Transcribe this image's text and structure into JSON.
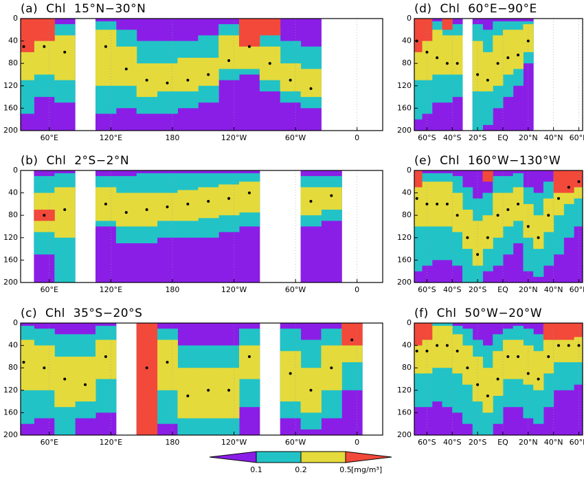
{
  "chart_data": [
    {
      "type": "contour",
      "title": "(a) Chl 15°N−30°N",
      "x": [
        35,
        55,
        75,
        95,
        115,
        135,
        155,
        175,
        195,
        215,
        235,
        255,
        275,
        295,
        315,
        335,
        355,
        375
      ],
      "values": [
        50,
        50,
        60,
        null,
        50,
        90,
        110,
        115,
        110,
        100,
        75,
        50,
        80,
        110,
        125,
        null,
        null,
        null
      ],
      "series": [
        {
          "top": [
            5,
            5,
            10,
            null,
            5,
            20,
            40,
            40,
            40,
            30,
            10,
            5,
            20,
            40,
            50,
            null,
            null,
            null
          ],
          "bottom": [
            170,
            140,
            150,
            null,
            170,
            160,
            170,
            170,
            160,
            150,
            110,
            100,
            130,
            150,
            160,
            null,
            null,
            null
          ]
        },
        {
          "top": [
            20,
            20,
            30,
            null,
            20,
            50,
            80,
            80,
            70,
            70,
            30,
            20,
            50,
            80,
            90,
            null,
            null,
            null
          ],
          "bottom": [
            110,
            100,
            110,
            null,
            120,
            120,
            140,
            130,
            130,
            120,
            90,
            90,
            110,
            130,
            140,
            null,
            null,
            null
          ]
        },
        {
          "top": [
            0,
            0,
            null,
            null,
            null,
            null,
            null,
            null,
            null,
            null,
            null,
            0,
            0,
            null,
            null,
            null,
            null,
            null
          ],
          "bottom": [
            60,
            40,
            null,
            null,
            null,
            null,
            null,
            null,
            null,
            null,
            null,
            50,
            30,
            null,
            null,
            null,
            null,
            null
          ]
        }
      ],
      "xlim": [
        32,
        385
      ],
      "xticks": [
        {
          "value": 60,
          "label": "60°E"
        },
        {
          "value": 120,
          "label": "120°E"
        },
        180,
        {
          "value": 240,
          "label": "120°W"
        },
        {
          "value": 300,
          "label": "60°W"
        },
        {
          "value": 360,
          "label": "0"
        }
      ],
      "ylim": [
        200,
        0
      ],
      "yticks": [
        0,
        40,
        80,
        120,
        160,
        200
      ],
      "grid": true
    },
    {
      "type": "contour",
      "title": "(b) Chl 2°S−2°N",
      "x": [
        35,
        55,
        75,
        95,
        115,
        135,
        155,
        175,
        195,
        215,
        235,
        255,
        275,
        295,
        315,
        335,
        355,
        375
      ],
      "values": [
        null,
        80,
        70,
        null,
        60,
        75,
        70,
        65,
        60,
        55,
        50,
        40,
        null,
        null,
        55,
        45,
        null,
        null
      ],
      "series": [
        {
          "top": [
            null,
            10,
            5,
            null,
            10,
            10,
            5,
            5,
            5,
            5,
            5,
            5,
            null,
            null,
            10,
            10,
            null,
            null
          ],
          "bottom": [
            null,
            150,
            200,
            null,
            100,
            130,
            130,
            120,
            120,
            120,
            110,
            100,
            null,
            null,
            100,
            90,
            null,
            null
          ]
        },
        {
          "top": [
            null,
            40,
            30,
            null,
            30,
            40,
            40,
            40,
            35,
            30,
            25,
            20,
            null,
            null,
            30,
            30,
            null,
            null
          ],
          "bottom": [
            null,
            110,
            120,
            null,
            90,
            100,
            100,
            90,
            90,
            85,
            80,
            75,
            null,
            null,
            80,
            70,
            null,
            null
          ]
        },
        {
          "top": [
            null,
            70,
            null,
            null,
            null,
            null,
            null,
            null,
            null,
            null,
            null,
            null,
            null,
            null,
            null,
            null,
            null,
            null
          ],
          "bottom": [
            null,
            90,
            null,
            null,
            null,
            null,
            null,
            null,
            null,
            null,
            null,
            null,
            null,
            null,
            null,
            null,
            null,
            null
          ]
        }
      ],
      "xlim": [
        32,
        385
      ],
      "xticks": [
        {
          "value": 60,
          "label": "60°E"
        },
        {
          "value": 120,
          "label": "120°E"
        },
        180,
        {
          "value": 240,
          "label": "120°W"
        },
        {
          "value": 300,
          "label": "60°W"
        },
        {
          "value": 360,
          "label": "0"
        }
      ],
      "ylim": [
        200,
        0
      ],
      "yticks": [
        0,
        40,
        80,
        120,
        160,
        200
      ],
      "grid": true
    },
    {
      "type": "contour",
      "title": "(c) Chl 35°S−20°S",
      "x": [
        35,
        55,
        75,
        95,
        115,
        135,
        155,
        175,
        195,
        215,
        235,
        255,
        275,
        295,
        315,
        335,
        355,
        375
      ],
      "values": [
        70,
        80,
        100,
        110,
        60,
        null,
        80,
        70,
        130,
        120,
        120,
        60,
        null,
        90,
        120,
        80,
        30,
        null
      ],
      "series": [
        {
          "top": [
            5,
            10,
            20,
            20,
            5,
            null,
            10,
            10,
            40,
            40,
            40,
            10,
            null,
            10,
            30,
            10,
            0,
            null
          ],
          "bottom": [
            180,
            170,
            200,
            170,
            160,
            null,
            200,
            180,
            200,
            200,
            200,
            150,
            null,
            170,
            190,
            170,
            120,
            null
          ]
        },
        {
          "top": [
            30,
            40,
            60,
            60,
            30,
            null,
            30,
            30,
            80,
            80,
            80,
            40,
            null,
            50,
            80,
            40,
            10,
            null
          ],
          "bottom": [
            120,
            120,
            150,
            140,
            100,
            null,
            140,
            120,
            170,
            170,
            170,
            100,
            null,
            140,
            160,
            120,
            70,
            null
          ]
        },
        {
          "top": [
            null,
            null,
            null,
            null,
            null,
            null,
            0,
            null,
            null,
            null,
            null,
            null,
            null,
            null,
            null,
            null,
            0,
            null
          ],
          "bottom": [
            null,
            null,
            null,
            null,
            null,
            null,
            200,
            null,
            null,
            null,
            null,
            null,
            null,
            null,
            null,
            null,
            40,
            null
          ]
        }
      ],
      "xlim": [
        32,
        385
      ],
      "xticks": [
        {
          "value": 60,
          "label": "60°E"
        },
        {
          "value": 120,
          "label": "120°E"
        },
        180,
        {
          "value": 240,
          "label": "120°W"
        },
        {
          "value": 300,
          "label": "60°W"
        },
        {
          "value": 360,
          "label": "0"
        }
      ],
      "ylim": [
        200,
        0
      ],
      "yticks": [
        0,
        40,
        80,
        120,
        160,
        200
      ],
      "grid": true
    },
    {
      "type": "contour",
      "title": "(d) Chl 60°E−90°E",
      "x": [
        -68,
        -60,
        -52,
        -44,
        -36,
        -28,
        -20,
        -12,
        -4,
        4,
        12,
        20,
        28,
        36,
        44,
        52,
        60
      ],
      "values": [
        40,
        60,
        70,
        80,
        80,
        null,
        100,
        110,
        80,
        70,
        65,
        40,
        null,
        null,
        null,
        null,
        null
      ],
      "series": [
        {
          "top": [
            0,
            5,
            5,
            10,
            10,
            null,
            10,
            20,
            5,
            5,
            5,
            5,
            null,
            null,
            null,
            null,
            null
          ],
          "bottom": [
            180,
            170,
            150,
            150,
            140,
            null,
            200,
            190,
            160,
            140,
            120,
            80,
            null,
            null,
            null,
            null,
            null
          ]
        },
        {
          "top": [
            5,
            20,
            20,
            30,
            30,
            null,
            40,
            60,
            30,
            20,
            20,
            10,
            null,
            null,
            null,
            null,
            null
          ],
          "bottom": [
            110,
            110,
            100,
            100,
            100,
            null,
            130,
            130,
            120,
            100,
            90,
            60,
            null,
            null,
            null,
            null,
            null
          ]
        },
        {
          "top": [
            0,
            0,
            null,
            0,
            null,
            null,
            null,
            null,
            null,
            null,
            null,
            null,
            null,
            null,
            null,
            null,
            null
          ],
          "bottom": [
            60,
            40,
            null,
            20,
            null,
            null,
            null,
            null,
            null,
            null,
            null,
            null,
            null,
            null,
            null,
            null,
            null
          ]
        }
      ],
      "xlim": [
        -70,
        63
      ],
      "xticks": [
        {
          "value": -60,
          "label": "60°S"
        },
        {
          "value": -40,
          "label": "40°S"
        },
        {
          "value": -20,
          "label": "20°S"
        },
        {
          "value": 0,
          "label": "EQ"
        },
        {
          "value": 20,
          "label": "20°N"
        },
        {
          "value": 40,
          "label": "40°N"
        },
        {
          "value": 60,
          "label": "60°N"
        }
      ],
      "ylim": [
        200,
        0
      ],
      "yticks": [
        0,
        40,
        80,
        120,
        160,
        200
      ],
      "grid": true
    },
    {
      "type": "contour",
      "title": "(e) Chl 160°W−130°W",
      "x": [
        -68,
        -60,
        -52,
        -44,
        -36,
        -28,
        -20,
        -12,
        -4,
        4,
        12,
        20,
        28,
        36,
        44,
        52,
        60
      ],
      "values": [
        50,
        60,
        60,
        60,
        80,
        120,
        150,
        120,
        80,
        70,
        60,
        100,
        120,
        80,
        50,
        30,
        20
      ],
      "series": [
        {
          "top": [
            5,
            5,
            5,
            5,
            10,
            30,
            50,
            40,
            10,
            10,
            5,
            30,
            40,
            20,
            5,
            0,
            0
          ],
          "bottom": [
            180,
            170,
            160,
            160,
            170,
            200,
            200,
            180,
            170,
            150,
            130,
            180,
            190,
            170,
            150,
            120,
            100
          ]
        },
        {
          "top": [
            20,
            20,
            20,
            20,
            40,
            70,
            90,
            80,
            40,
            40,
            30,
            60,
            80,
            50,
            20,
            5,
            5
          ],
          "bottom": [
            100,
            100,
            100,
            100,
            110,
            140,
            170,
            140,
            120,
            100,
            90,
            120,
            140,
            110,
            80,
            60,
            50
          ]
        },
        {
          "top": [
            0,
            null,
            null,
            null,
            null,
            null,
            null,
            0,
            null,
            null,
            null,
            null,
            null,
            null,
            0,
            0,
            0
          ],
          "bottom": [
            30,
            null,
            null,
            null,
            null,
            null,
            null,
            20,
            null,
            null,
            null,
            null,
            null,
            null,
            40,
            40,
            30
          ]
        }
      ],
      "xlim": [
        -70,
        63
      ],
      "xticks": [
        {
          "value": -60,
          "label": "60°S"
        },
        {
          "value": -40,
          "label": "40°S"
        },
        {
          "value": -20,
          "label": "20°S"
        },
        {
          "value": 0,
          "label": "EQ"
        },
        {
          "value": 20,
          "label": "20°N"
        },
        {
          "value": 40,
          "label": "40°N"
        },
        {
          "value": 60,
          "label": "60°N"
        }
      ],
      "ylim": [
        200,
        0
      ],
      "yticks": [
        0,
        40,
        80,
        120,
        160,
        200
      ],
      "grid": true
    },
    {
      "type": "contour",
      "title": "(f) Chl 50°W−20°W",
      "x": [
        -68,
        -60,
        -52,
        -44,
        -36,
        -28,
        -20,
        -12,
        -4,
        4,
        12,
        20,
        28,
        36,
        44,
        52,
        60
      ],
      "values": [
        50,
        50,
        40,
        40,
        50,
        80,
        110,
        130,
        100,
        60,
        60,
        90,
        100,
        60,
        40,
        40,
        40
      ],
      "series": [
        {
          "top": [
            0,
            0,
            0,
            0,
            5,
            10,
            30,
            40,
            20,
            10,
            5,
            10,
            20,
            5,
            0,
            0,
            0
          ],
          "bottom": [
            150,
            150,
            140,
            150,
            160,
            180,
            200,
            200,
            180,
            150,
            150,
            170,
            180,
            150,
            120,
            120,
            110
          ]
        },
        {
          "top": [
            10,
            10,
            5,
            5,
            20,
            40,
            60,
            80,
            50,
            30,
            30,
            40,
            50,
            20,
            10,
            10,
            10
          ],
          "bottom": [
            90,
            90,
            80,
            80,
            90,
            110,
            140,
            160,
            130,
            100,
            100,
            110,
            120,
            90,
            70,
            70,
            70
          ]
        },
        {
          "top": [
            0,
            0,
            null,
            null,
            null,
            null,
            null,
            null,
            null,
            null,
            null,
            null,
            null,
            0,
            0,
            0,
            0
          ],
          "bottom": [
            40,
            30,
            null,
            null,
            null,
            null,
            null,
            null,
            null,
            null,
            null,
            null,
            null,
            30,
            30,
            30,
            25
          ]
        }
      ],
      "xlim": [
        -70,
        63
      ],
      "xticks": [
        {
          "value": -60,
          "label": "60°S"
        },
        {
          "value": -40,
          "label": "40°S"
        },
        {
          "value": -20,
          "label": "20°S"
        },
        {
          "value": 0,
          "label": "EQ"
        },
        {
          "value": 20,
          "label": "20°N"
        },
        {
          "value": 40,
          "label": "40°N"
        },
        {
          "value": 60,
          "label": "60°N"
        }
      ],
      "ylim": [
        200,
        0
      ],
      "yticks": [
        0,
        40,
        80,
        120,
        160,
        200
      ],
      "grid": true
    }
  ],
  "colorbar": {
    "colors": [
      "#8a1ee6",
      "#22c3c6",
      "#e4da3c",
      "#f2493a"
    ],
    "levels": [
      0.1,
      0.2,
      0.5
    ],
    "unit": "[mg/m³]"
  }
}
